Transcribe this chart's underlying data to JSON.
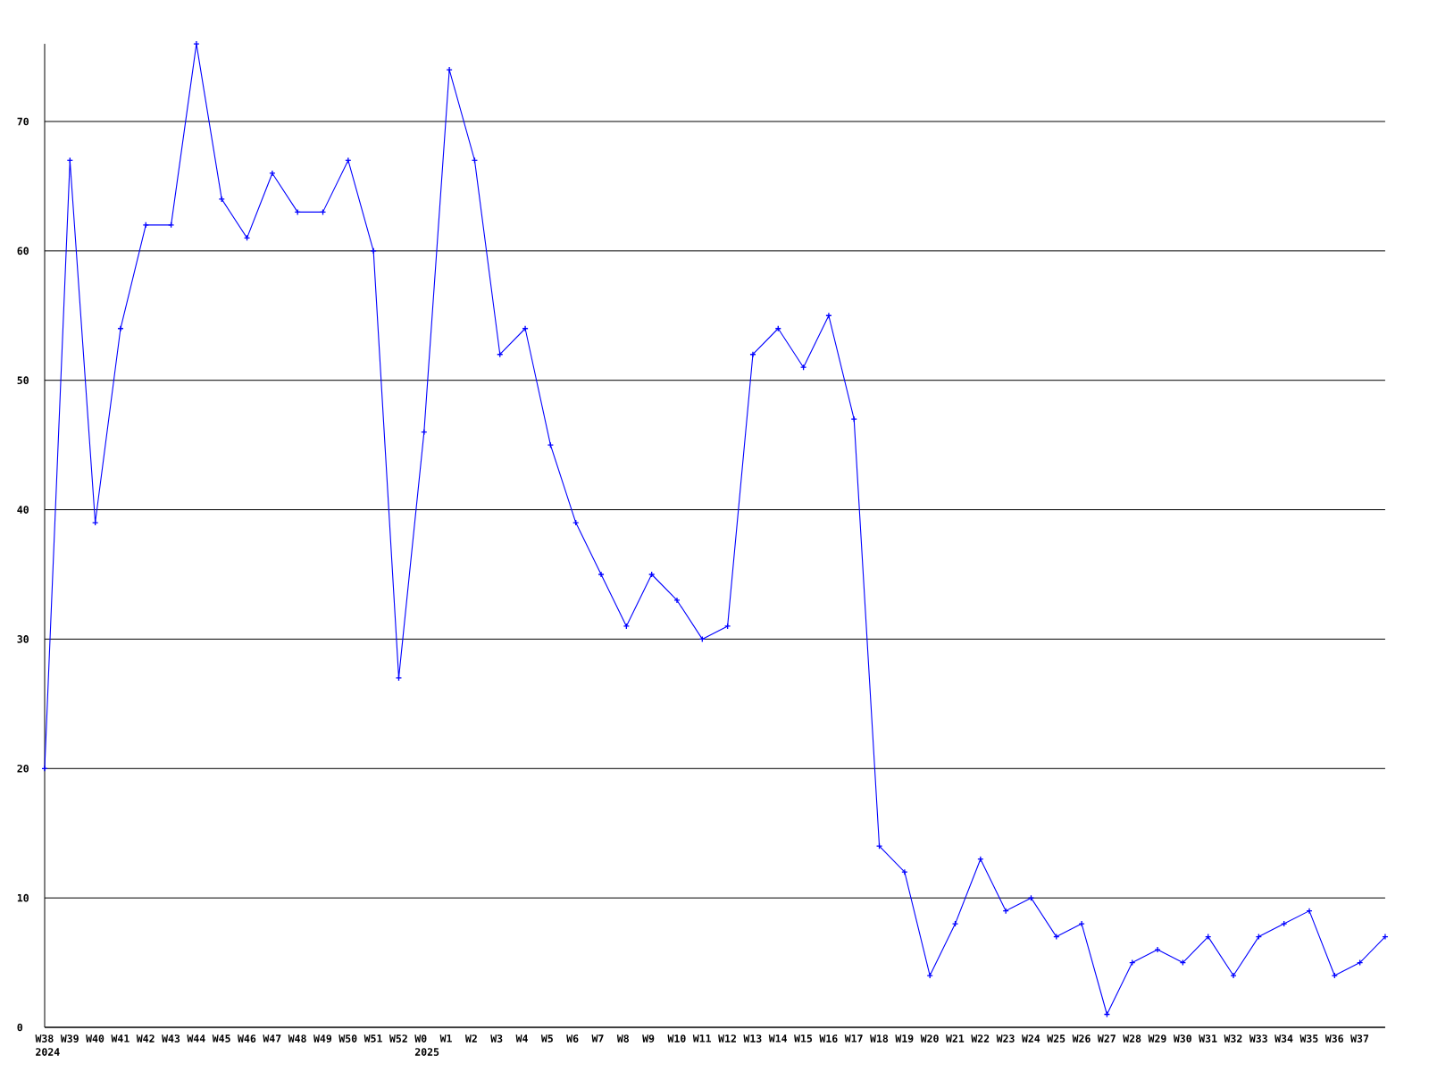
{
  "chart_data": {
    "type": "line",
    "categories": [
      "W38 2024",
      "W39",
      "W40",
      "W41",
      "W42",
      "W43",
      "W44",
      "W45",
      "W46",
      "W47",
      "W48",
      "W49",
      "W50",
      "W51",
      "W52",
      "W0 2025",
      "W1",
      "W2",
      "W3",
      "W4",
      "W5",
      "W6",
      "W7",
      "W8",
      "W9",
      "W10",
      "W11",
      "W12",
      "W13",
      "W14",
      "W15",
      "W16",
      "W17",
      "W18",
      "W19",
      "W20",
      "W21",
      "W22",
      "W23",
      "W24",
      "W25",
      "W26",
      "W27",
      "W28",
      "W29",
      "W30",
      "W31",
      "W32",
      "W33",
      "W34",
      "W35",
      "W36",
      "W37",
      null
    ],
    "series": [
      {
        "color": "#0000ff",
        "values": [
          20,
          67,
          39,
          54,
          62,
          62,
          76,
          64,
          61,
          66,
          63,
          63,
          67,
          60,
          27,
          46,
          74,
          67,
          52,
          54,
          45,
          39,
          35,
          31,
          35,
          33,
          30,
          31,
          52,
          54,
          51,
          55,
          47,
          14,
          12,
          4,
          8,
          13,
          9,
          10,
          7,
          8,
          1,
          5,
          6,
          5,
          7,
          4,
          7,
          8,
          9,
          4,
          5,
          7
        ]
      }
    ],
    "ylim": [
      0,
      76
    ],
    "yticks": [
      0,
      10,
      20,
      30,
      40,
      50,
      60,
      70
    ],
    "grid": "y",
    "marker": "cross",
    "line_style": "solid"
  }
}
